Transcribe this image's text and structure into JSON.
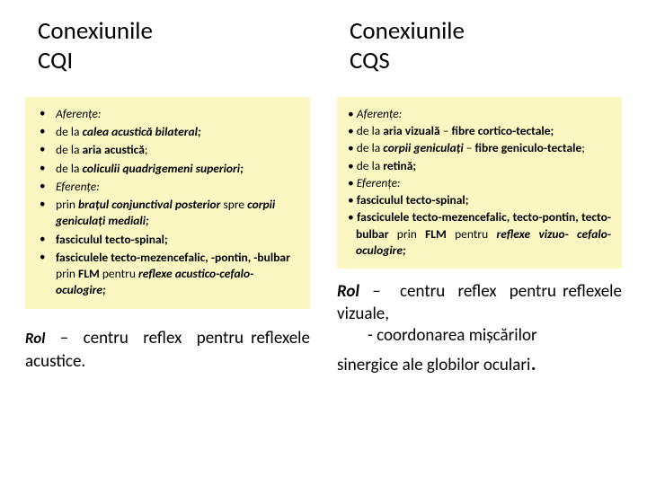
{
  "colors": {
    "box_bg": "#fbf7c3",
    "text": "#000000",
    "page_bg": "#ffffff"
  },
  "typography": {
    "title_fontsize": 27,
    "body_fontsize": 13.5,
    "rol_fontsize": 19
  },
  "left": {
    "title_line1": "Conexiunile",
    "title_line2": "CQI",
    "items": [
      {
        "html": "<i>Aferențe:</i>"
      },
      {
        "html": "de la <b><i>calea acustică bilateral;</i></b>"
      },
      {
        "html": "de la <b>aria acustică</b>;"
      },
      {
        "html": "de la <b><i>coliculii quadrigemeni superiori;</i></b>"
      },
      {
        "html": "<i>Eferențe:</i>"
      },
      {
        "html": "prin <b><i>brațul conjunctival posterior</i></b> spre <b><i>corpii geniculați mediali;</i></b>"
      },
      {
        "html": "<b>fasciculul tecto-spinal;</b>"
      },
      {
        "html": "<b>fasciculele tecto-mezencefalic, -pontin, -bulbar</b> prin <b>FLM</b> pentru <b><i>reflexe acustico-cefalo-oculogire;</i></b>"
      }
    ],
    "rol_html": "<span class=\"rolword\">Rol</span> &nbsp;–&nbsp; centru&nbsp; reflex&nbsp; pentru reflexele acustice."
  },
  "right": {
    "title_line1": "Conexiunile",
    "title_line2": "CQS",
    "items": [
      {
        "html": "• <i>Aferențe:</i>"
      },
      {
        "html": "• de la <b>aria vizuală</b> – <b>fibre cortico-tectale;</b>"
      },
      {
        "html": "• de la <b><i>corpii geniculați</i></b> – <b>fibre geniculo-tectale</b>;"
      },
      {
        "html": "• de la <b>retină;</b>"
      },
      {
        "html": "• <i>Eferențe:</i>"
      },
      {
        "html": "• <b>fasciculul tecto-spinal;</b>"
      },
      {
        "html": "• <b>fasciculele tecto-mezencefalic, tecto-pontin, tecto-bulbar</b> prin <b>FLM</b> pentru <b><i>reflexe vizuo- cefalo-oculogire;</i></b>"
      }
    ],
    "rol_line1_html": "<b><i>Rol</i></b> &nbsp;–&nbsp;&nbsp; centru&nbsp; reflex&nbsp; pentru reflexele vizuale,",
    "rol_line2": "- coordonarea mișcărilor",
    "rol_line3_html": "sinergice ale globilor oculari<span style=\"font-size:26px\">.</span>"
  }
}
